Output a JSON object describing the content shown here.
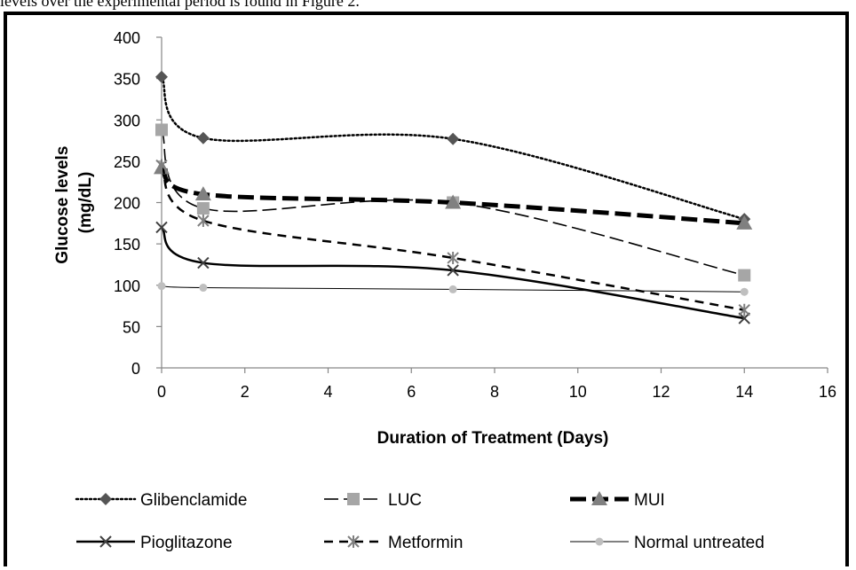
{
  "caption": "levels over the experimental period is found in Figure 2.",
  "chart_data": {
    "type": "line",
    "title": "",
    "xlabel": "Duration of Treatment (Days)",
    "ylabel": "Glucose levels (mg/dL)",
    "ylabel_lines": [
      "Glucose levels",
      "(mg/dL)"
    ],
    "xlim": [
      0,
      16
    ],
    "ylim": [
      0,
      400
    ],
    "xticks": [
      "0",
      "2",
      "4",
      "6",
      "8",
      "10",
      "12",
      "14",
      "16"
    ],
    "yticks": [
      "0",
      "50",
      "100",
      "150",
      "200",
      "250",
      "300",
      "350",
      "400"
    ],
    "grid": false,
    "legend_position": "bottom",
    "x": [
      0,
      1,
      7,
      14
    ],
    "series": [
      {
        "name": "Glibenclamide",
        "values": [
          352,
          278,
          277,
          180
        ],
        "color": "#000000",
        "marker_color": "#555555",
        "marker": "diamond",
        "dash": "dotted",
        "width": 2.5
      },
      {
        "name": "LUC",
        "values": [
          288,
          193,
          200,
          112
        ],
        "color": "#000000",
        "marker_color": "#a6a6a6",
        "marker": "square",
        "dash": "long-dash",
        "width": 1.6
      },
      {
        "name": "MUI",
        "values": [
          242,
          210,
          200,
          175
        ],
        "color": "#000000",
        "marker_color": "#808080",
        "marker": "triangle",
        "dash": "heavy-dash",
        "width": 5
      },
      {
        "name": "Pioglitazone",
        "values": [
          170,
          127,
          118,
          60
        ],
        "color": "#000000",
        "marker_color": "#404040",
        "marker": "x",
        "dash": "solid",
        "width": 2.5
      },
      {
        "name": "Metformin",
        "values": [
          245,
          178,
          133,
          70
        ],
        "color": "#000000",
        "marker_color": "#7f7f7f",
        "marker": "star",
        "dash": "dash",
        "width": 2.5
      },
      {
        "name": "Normal untreated",
        "values": [
          99,
          97,
          95,
          92
        ],
        "color": "#000000",
        "marker_color": "#bfbfbf",
        "marker": "circle",
        "dash": "solid",
        "width": 1
      }
    ]
  }
}
